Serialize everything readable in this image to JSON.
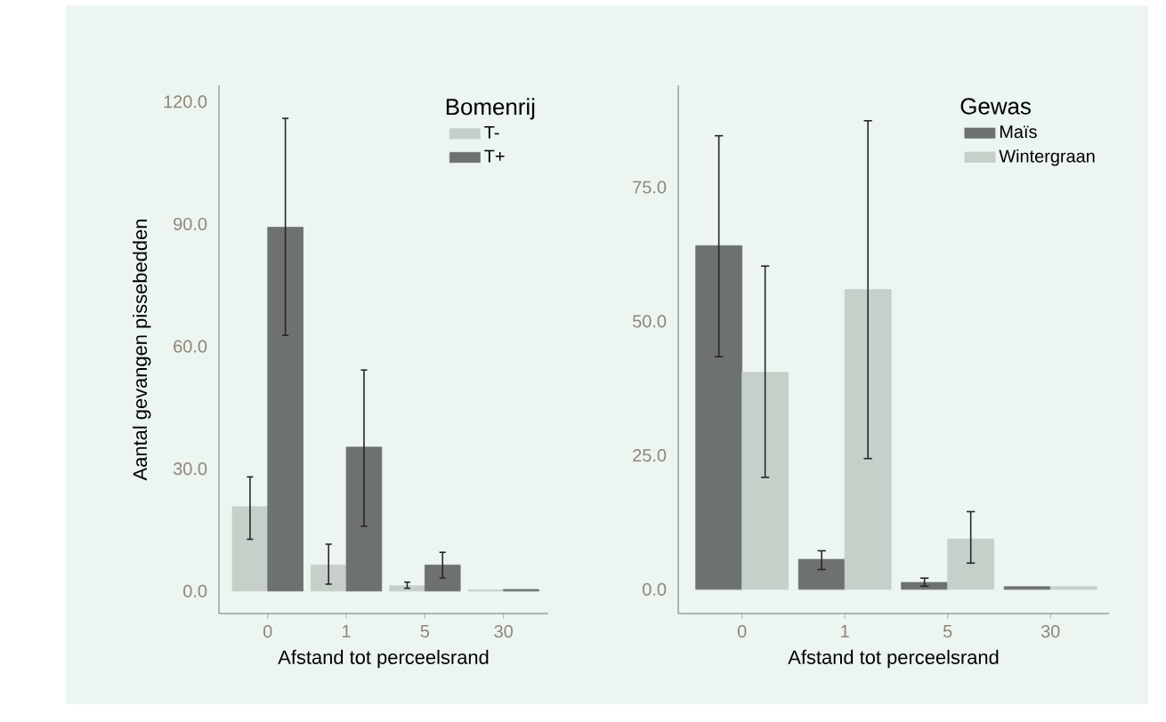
{
  "chart_data": [
    {
      "type": "bar",
      "xlabel": "Afstand tot perceelsrand",
      "ylabel": "Aantal gevangen pissebedden",
      "legend_title": "Bomenrij",
      "categories": [
        "0",
        "1",
        "5",
        "30"
      ],
      "series": [
        {
          "name": "T-",
          "color": "#c7cfc9",
          "values": [
            20.7,
            6.4,
            1.3,
            0.3
          ],
          "errors": [
            [
              12.7,
              28.0
            ],
            [
              1.7,
              11.5
            ],
            [
              0.7,
              2.2
            ],
            null
          ]
        },
        {
          "name": "T+",
          "color": "#6d726e",
          "values": [
            89.2,
            35.3,
            6.4,
            0.4
          ],
          "errors": [
            [
              62.7,
              115.9
            ],
            [
              15.9,
              54.2
            ],
            [
              3.2,
              9.5
            ],
            null
          ]
        }
      ],
      "ylim": [
        -5.5,
        124
      ],
      "yticks": [
        {
          "value": 0,
          "label": "0.0"
        },
        {
          "value": 30,
          "label": "30.0"
        },
        {
          "value": 60,
          "label": "60.0"
        },
        {
          "value": 90,
          "label": "90.0"
        },
        {
          "value": 120,
          "label": "120.0"
        }
      ],
      "grid": false,
      "legend": "top right"
    },
    {
      "type": "bar",
      "xlabel": "Afstand tot perceelsrand",
      "legend_title": "Gewas",
      "categories": [
        "0",
        "1",
        "5",
        "30"
      ],
      "series": [
        {
          "name": "Maïs",
          "color": "#6d726e",
          "values": [
            64.1,
            5.6,
            1.3,
            0.5
          ],
          "errors": [
            [
              43.4,
              84.6
            ],
            [
              3.7,
              7.2
            ],
            [
              0.6,
              2.1
            ],
            null
          ]
        },
        {
          "name": "Wintergraan",
          "color": "#c7cfc9",
          "values": [
            40.5,
            55.9,
            9.4,
            0.5
          ],
          "errors": [
            [
              20.9,
              60.3
            ],
            [
              24.4,
              87.4
            ],
            [
              4.9,
              14.5
            ],
            null
          ]
        }
      ],
      "ylim": [
        -4.5,
        94
      ],
      "yticks": [
        {
          "value": 0,
          "label": "0.0"
        },
        {
          "value": 25,
          "label": "25.0"
        },
        {
          "value": 50,
          "label": "50.0"
        },
        {
          "value": 75,
          "label": "75.0"
        }
      ],
      "grid": false,
      "legend": "top right"
    }
  ]
}
